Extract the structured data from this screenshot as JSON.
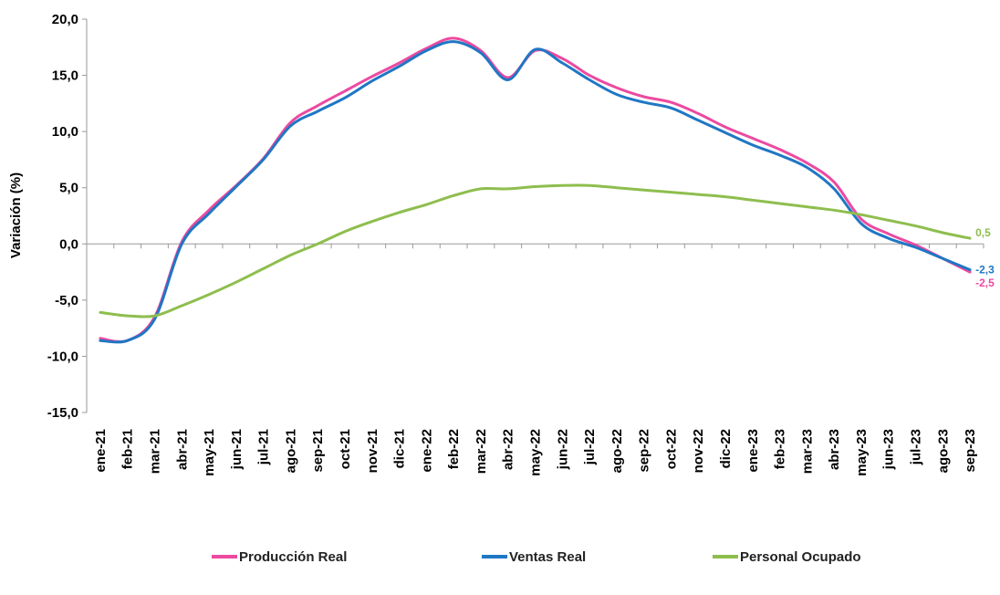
{
  "chart_data": {
    "type": "line",
    "title": "",
    "xlabel": "",
    "ylabel": "Variación (%)",
    "ylim": [
      -15,
      20
    ],
    "yticks": [
      "20,0",
      "15,0",
      "10,0",
      "5,0",
      "0,0",
      "-5,0",
      "-10,0",
      "-15,0"
    ],
    "ytick_values": [
      20,
      15,
      10,
      5,
      0,
      -5,
      -10,
      -15
    ],
    "grid": false,
    "legend_position": "bottom",
    "categories": [
      "ene-21",
      "feb-21",
      "mar-21",
      "abr-21",
      "may-21",
      "jun-21",
      "jul-21",
      "ago-21",
      "sep-21",
      "oct-21",
      "nov-21",
      "dic-21",
      "ene-22",
      "feb-22",
      "mar-22",
      "abr-22",
      "may-22",
      "jun-22",
      "jul-22",
      "ago-22",
      "sep-22",
      "oct-22",
      "nov-22",
      "dic-22",
      "ene-23",
      "feb-23",
      "mar-23",
      "abr-23",
      "may-23",
      "jun-23",
      "jul-23",
      "ago-23",
      "sep-23"
    ],
    "series": [
      {
        "name": "Producción Real",
        "color": "#ec4aa0",
        "values": [
          -8.4,
          -8.6,
          -6.5,
          0.2,
          3.0,
          5.2,
          7.6,
          10.8,
          12.3,
          13.6,
          14.9,
          16.1,
          17.4,
          18.3,
          17.2,
          14.8,
          17.2,
          16.5,
          15.0,
          13.9,
          13.1,
          12.6,
          11.6,
          10.4,
          9.4,
          8.4,
          7.2,
          5.5,
          2.2,
          0.9,
          -0.1,
          -1.3,
          -2.5
        ],
        "end_label": "-2,5"
      },
      {
        "name": "Ventas Real",
        "color": "#1f77c4",
        "values": [
          -8.6,
          -8.6,
          -6.7,
          0.0,
          2.7,
          5.1,
          7.5,
          10.5,
          11.8,
          13.0,
          14.5,
          15.8,
          17.2,
          18.0,
          17.0,
          14.6,
          17.3,
          16.1,
          14.6,
          13.3,
          12.6,
          12.1,
          11.0,
          9.9,
          8.8,
          7.9,
          6.8,
          4.9,
          1.8,
          0.5,
          -0.3,
          -1.3,
          -2.3
        ],
        "end_label": "-2,3"
      },
      {
        "name": "Personal Ocupado",
        "color": "#8ebe4e",
        "values": [
          -6.1,
          -6.4,
          -6.4,
          -5.5,
          -4.5,
          -3.4,
          -2.2,
          -1.0,
          0.0,
          1.1,
          2.0,
          2.8,
          3.5,
          4.3,
          4.9,
          4.9,
          5.1,
          5.2,
          5.2,
          5.0,
          4.8,
          4.6,
          4.4,
          4.2,
          3.9,
          3.6,
          3.3,
          3.0,
          2.6,
          2.1,
          1.6,
          1.0,
          0.5
        ],
        "end_label": "0,5"
      }
    ]
  }
}
